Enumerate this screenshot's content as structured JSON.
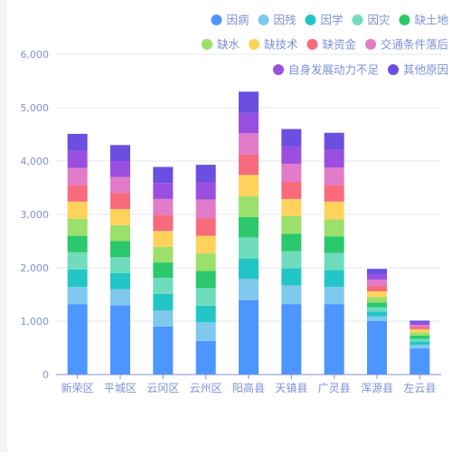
{
  "chart_data": {
    "type": "bar",
    "stacked": true,
    "categories": [
      "新荣区",
      "平城区",
      "云冈区",
      "云州区",
      "阳高县",
      "天镇县",
      "广灵县",
      "浑源县",
      "左云县"
    ],
    "y_ticks": [
      "0",
      "1,000",
      "2,000",
      "3,000",
      "4,000",
      "5,000",
      "6,000"
    ],
    "ylim": [
      0,
      6000
    ],
    "grid": true,
    "legend_position": "top-right",
    "series": [
      {
        "name": "因病",
        "color": "#4d96ff",
        "values": [
          1320,
          1300,
          900,
          630,
          1390,
          1320,
          1320,
          1000,
          490
        ]
      },
      {
        "name": "因残",
        "color": "#7fc8ee",
        "values": [
          320,
          300,
          300,
          350,
          400,
          350,
          320,
          90,
          70
        ]
      },
      {
        "name": "因学",
        "color": "#22c6c6",
        "values": [
          330,
          300,
          310,
          310,
          380,
          320,
          320,
          90,
          60
        ]
      },
      {
        "name": "因灾",
        "color": "#6fdcbd",
        "values": [
          320,
          300,
          300,
          330,
          400,
          320,
          320,
          80,
          50
        ]
      },
      {
        "name": "缺土地",
        "color": "#2bc86c",
        "values": [
          310,
          300,
          290,
          320,
          380,
          330,
          310,
          90,
          60
        ]
      },
      {
        "name": "缺水",
        "color": "#9be06a",
        "values": [
          320,
          300,
          290,
          330,
          390,
          330,
          320,
          100,
          60
        ]
      },
      {
        "name": "缺技术",
        "color": "#ffd35b",
        "values": [
          320,
          300,
          300,
          330,
          400,
          320,
          330,
          110,
          60
        ]
      },
      {
        "name": "缺资金",
        "color": "#f76b7d",
        "values": [
          310,
          300,
          300,
          330,
          380,
          320,
          310,
          100,
          40
        ]
      },
      {
        "name": "交通条件落后",
        "color": "#e27cc9",
        "values": [
          320,
          300,
          300,
          350,
          400,
          340,
          330,
          120,
          40
        ]
      },
      {
        "name": "自身发展动力不足",
        "color": "#9a4fe0",
        "values": [
          320,
          300,
          300,
          330,
          380,
          330,
          330,
          100,
          40
        ]
      },
      {
        "name": "其他原因",
        "color": "#6a4fe0",
        "values": [
          320,
          300,
          300,
          320,
          400,
          320,
          320,
          100,
          40
        ]
      }
    ]
  },
  "colors": {
    "axis_label": "#7f90d8",
    "grid": "#e4e7ef",
    "axis_line": "#7f90d8"
  }
}
